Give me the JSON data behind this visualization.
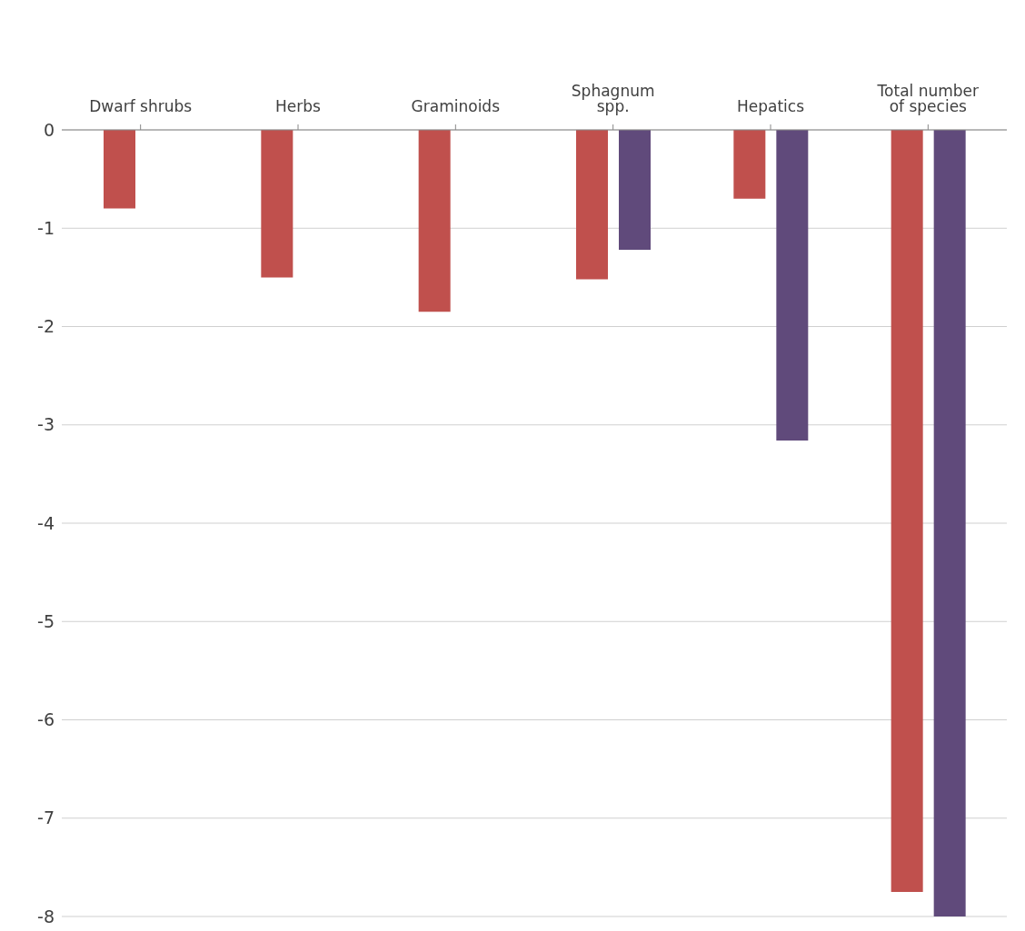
{
  "chart_data": {
    "type": "bar",
    "categories": [
      "Dwarf shrubs",
      "Herbs",
      "Graminoids",
      "Sphagnum spp.",
      "Hepatics",
      "Total number of species"
    ],
    "series": [
      {
        "color": "#c0504d",
        "values": [
          -0.8,
          -1.5,
          -1.85,
          -1.52,
          -0.7,
          -7.75
        ]
      },
      {
        "color": "#604a7b",
        "values": [
          null,
          null,
          null,
          -1.22,
          -3.16,
          -8
        ]
      }
    ],
    "ylim": [
      -8,
      0
    ],
    "yticks": [
      -8,
      -7,
      -6,
      -5,
      -4,
      -3,
      -2,
      -1,
      0
    ],
    "grid": "y",
    "legend": false
  }
}
